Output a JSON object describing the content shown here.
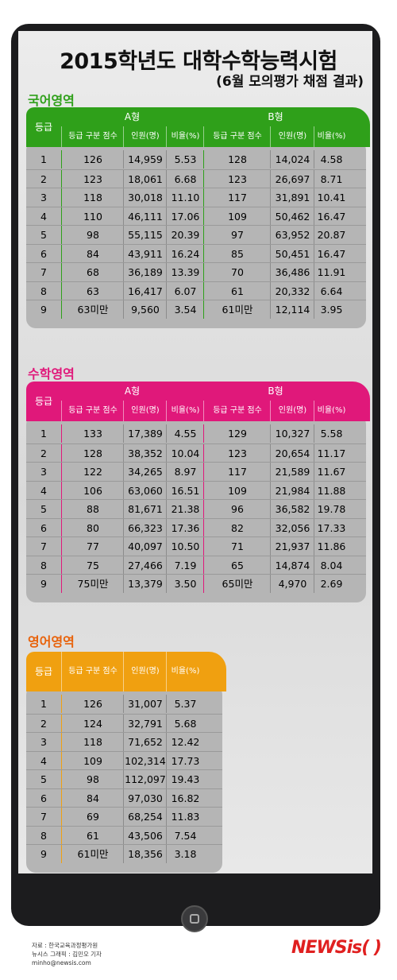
{
  "title": "2015학년도 대학수학능력시험",
  "subtitle": "(6월 모의평가 채점 결과)",
  "colors": {
    "korean": "#2fa01a",
    "math": "#e0187a",
    "english": "#f0a010"
  },
  "headers": {
    "grade": "등급",
    "type_a": "A형",
    "type_b": "B형",
    "cut": "등급 구분 점수",
    "people": "인원(명)",
    "ratio": "비율(%)"
  },
  "korean": {
    "title": "국어영역",
    "rows": [
      [
        "1",
        "126",
        "14,959",
        "5.53",
        "128",
        "14,024",
        "4.58"
      ],
      [
        "2",
        "123",
        "18,061",
        "6.68",
        "123",
        "26,697",
        "8.71"
      ],
      [
        "3",
        "118",
        "30,018",
        "11.10",
        "117",
        "31,891",
        "10.41"
      ],
      [
        "4",
        "110",
        "46,111",
        "17.06",
        "109",
        "50,462",
        "16.47"
      ],
      [
        "5",
        "98",
        "55,115",
        "20.39",
        "97",
        "63,952",
        "20.87"
      ],
      [
        "6",
        "84",
        "43,911",
        "16.24",
        "85",
        "50,451",
        "16.47"
      ],
      [
        "7",
        "68",
        "36,189",
        "13.39",
        "70",
        "36,486",
        "11.91"
      ],
      [
        "8",
        "63",
        "16,417",
        "6.07",
        "61",
        "20,332",
        "6.64"
      ],
      [
        "9",
        "63미만",
        "9,560",
        "3.54",
        "61미만",
        "12,114",
        "3.95"
      ]
    ]
  },
  "math": {
    "title": "수학영역",
    "rows": [
      [
        "1",
        "133",
        "17,389",
        "4.55",
        "129",
        "10,327",
        "5.58"
      ],
      [
        "2",
        "128",
        "38,352",
        "10.04",
        "123",
        "20,654",
        "11.17"
      ],
      [
        "3",
        "122",
        "34,265",
        "8.97",
        "117",
        "21,589",
        "11.67"
      ],
      [
        "4",
        "106",
        "63,060",
        "16.51",
        "109",
        "21,984",
        "11.88"
      ],
      [
        "5",
        "88",
        "81,671",
        "21.38",
        "96",
        "36,582",
        "19.78"
      ],
      [
        "6",
        "80",
        "66,323",
        "17.36",
        "82",
        "32,056",
        "17.33"
      ],
      [
        "7",
        "77",
        "40,097",
        "10.50",
        "71",
        "21,937",
        "11.86"
      ],
      [
        "8",
        "75",
        "27,466",
        "7.19",
        "65",
        "14,874",
        "8.04"
      ],
      [
        "9",
        "75미만",
        "13,379",
        "3.50",
        "65미만",
        "4,970",
        "2.69"
      ]
    ]
  },
  "english": {
    "title": "영어영역",
    "rows": [
      [
        "1",
        "126",
        "31,007",
        "5.37"
      ],
      [
        "2",
        "124",
        "32,791",
        "5.68"
      ],
      [
        "3",
        "118",
        "71,652",
        "12.42"
      ],
      [
        "4",
        "109",
        "102,314",
        "17.73"
      ],
      [
        "5",
        "98",
        "112,097",
        "19.43"
      ],
      [
        "6",
        "84",
        "97,030",
        "16.82"
      ],
      [
        "7",
        "69",
        "68,254",
        "11.83"
      ],
      [
        "8",
        "61",
        "43,506",
        "7.54"
      ],
      [
        "9",
        "61미만",
        "18,356",
        "3.18"
      ]
    ]
  },
  "footer": {
    "source": "자료 : 한국교육과정평가원",
    "credit": "뉴시스 그래픽 : 김민오 기자",
    "email": "minho@newsis.com"
  },
  "brand": "NEWSis( )"
}
